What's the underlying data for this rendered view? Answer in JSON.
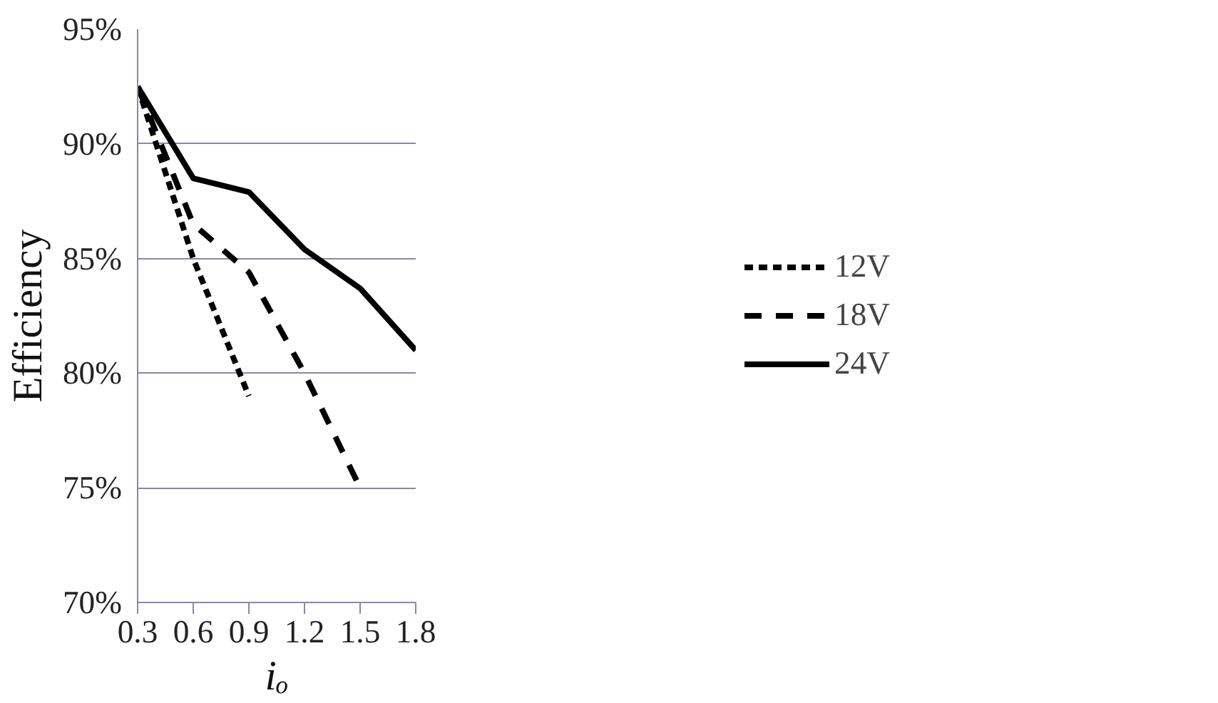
{
  "chart_data": {
    "type": "line",
    "xlabel": "iₒ",
    "ylabel": "Efficiency",
    "x": [
      0.3,
      0.6,
      0.9,
      1.2,
      1.5,
      1.8
    ],
    "series": [
      {
        "name": "12V",
        "color": "#000000",
        "line_style": "dotted",
        "values": [
          92.5,
          85,
          79,
          null,
          null,
          null
        ]
      },
      {
        "name": "18V",
        "color": "#000000",
        "line_style": "dashed",
        "values": [
          92.5,
          86.5,
          84.4,
          80,
          75,
          null
        ]
      },
      {
        "name": "24V",
        "color": "#000000",
        "line_style": "solid",
        "values": [
          92.5,
          88.5,
          87.9,
          85.4,
          83.7,
          81
        ]
      }
    ],
    "xlim": [
      0.3,
      1.8
    ],
    "xticks": [
      0.3,
      0.6,
      0.9,
      1.2,
      1.5,
      1.8
    ],
    "ylim": [
      70,
      95
    ],
    "yticks": [
      {
        "value": 70,
        "label": "70%"
      },
      {
        "value": 75,
        "label": "75%"
      },
      {
        "value": 80,
        "label": "80%"
      },
      {
        "value": 85,
        "label": "85%"
      },
      {
        "value": 90,
        "label": "90%"
      },
      {
        "value": 95,
        "label": "95%"
      }
    ],
    "grid": "y",
    "legend": "right",
    "marker": "none"
  }
}
